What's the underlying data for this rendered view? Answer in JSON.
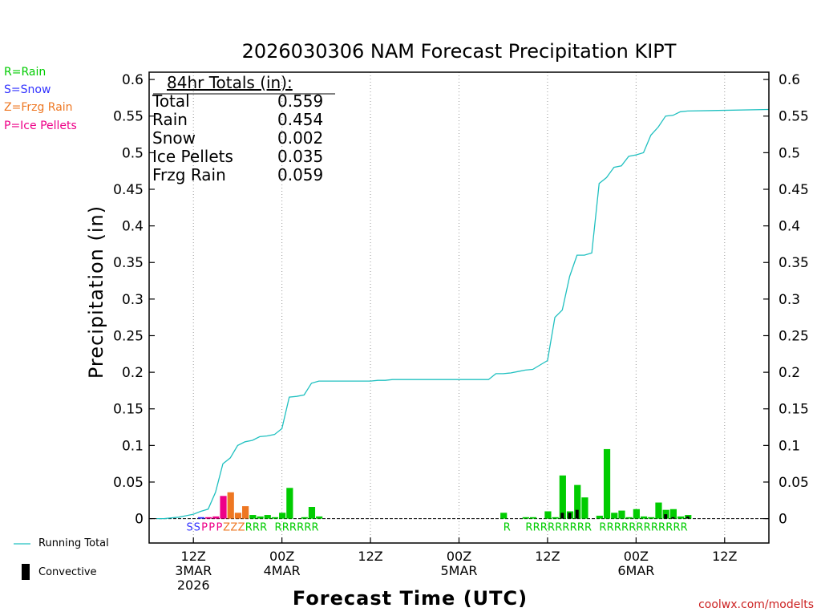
{
  "chart_data": {
    "type": "bar",
    "title": "2026030306 NAM Forecast Precipitation KIPT",
    "xlabel": "Forecast Time (UTC)",
    "ylabel": "Precipitation (in)",
    "ylim": [
      -0.0333,
      0.61
    ],
    "yticks": [
      0,
      0.05,
      0.1,
      0.15,
      0.2,
      0.25,
      0.3,
      0.35,
      0.4,
      0.45,
      0.5,
      0.55,
      0.6
    ],
    "ytick_labels": [
      "0",
      "0.05",
      "0.1",
      "0.15",
      "0.2",
      "0.25",
      "0.3",
      "0.35",
      "0.4",
      "0.45",
      "0.5",
      "0.55",
      "0.6"
    ],
    "xlim_hours": [
      0,
      84
    ],
    "xticks": [
      {
        "hour": 6,
        "lines": [
          "12Z",
          "3MAR",
          "2026"
        ]
      },
      {
        "hour": 18,
        "lines": [
          "00Z",
          "4MAR"
        ]
      },
      {
        "hour": 30,
        "lines": [
          "12Z"
        ]
      },
      {
        "hour": 42,
        "lines": [
          "00Z",
          "5MAR"
        ]
      },
      {
        "hour": 54,
        "lines": [
          "12Z"
        ]
      },
      {
        "hour": 66,
        "lines": [
          "00Z",
          "6MAR"
        ]
      },
      {
        "hour": 78,
        "lines": [
          "12Z"
        ]
      }
    ],
    "series": [
      {
        "name": "Running Total",
        "type": "line",
        "color": "#20c0c0",
        "x": [
          1,
          2,
          3,
          4,
          5,
          6,
          7,
          8,
          9,
          10,
          11,
          12,
          13,
          14,
          15,
          16,
          17,
          18,
          19,
          20,
          21,
          22,
          23,
          24,
          25,
          26,
          27,
          28,
          29,
          30,
          31,
          32,
          33,
          34,
          35,
          36,
          37,
          38,
          39,
          40,
          41,
          42,
          43,
          44,
          45,
          46,
          47,
          48,
          49,
          50,
          51,
          52,
          53,
          54,
          55,
          56,
          57,
          58,
          59,
          60,
          61,
          62,
          63,
          64,
          65,
          66,
          67,
          68,
          69,
          70,
          71,
          72,
          73,
          84
        ],
        "values": [
          0.0,
          0.0,
          0.001,
          0.002,
          0.004,
          0.006,
          0.01,
          0.013,
          0.036,
          0.075,
          0.083,
          0.1,
          0.105,
          0.107,
          0.112,
          0.113,
          0.115,
          0.123,
          0.166,
          0.167,
          0.169,
          0.185,
          0.188,
          0.188,
          0.188,
          0.188,
          0.188,
          0.188,
          0.188,
          0.188,
          0.189,
          0.189,
          0.19,
          0.19,
          0.19,
          0.19,
          0.19,
          0.19,
          0.19,
          0.19,
          0.19,
          0.19,
          0.19,
          0.19,
          0.19,
          0.19,
          0.198,
          0.198,
          0.199,
          0.201,
          0.203,
          0.204,
          0.21,
          0.216,
          0.275,
          0.285,
          0.331,
          0.36,
          0.36,
          0.363,
          0.458,
          0.466,
          0.48,
          0.482,
          0.495,
          0.497,
          0.5,
          0.524,
          0.535,
          0.55,
          0.551,
          0.556,
          0.557,
          0.559
        ]
      },
      {
        "name": "Hourly Precip",
        "type": "bar",
        "bars": [
          {
            "hour": 7,
            "value": 0.002,
            "ptype": "S"
          },
          {
            "hour": 8,
            "value": 0.002,
            "ptype": "P"
          },
          {
            "hour": 9,
            "value": 0.003,
            "ptype": "P"
          },
          {
            "hour": 10,
            "value": 0.031,
            "ptype": "P"
          },
          {
            "hour": 11,
            "value": 0.036,
            "ptype": "Z"
          },
          {
            "hour": 12,
            "value": 0.008,
            "ptype": "Z"
          },
          {
            "hour": 13,
            "value": 0.017,
            "ptype": "Z"
          },
          {
            "hour": 14,
            "value": 0.005,
            "ptype": "R"
          },
          {
            "hour": 15,
            "value": 0.003,
            "ptype": "R"
          },
          {
            "hour": 16,
            "value": 0.005,
            "ptype": "R"
          },
          {
            "hour": 17,
            "value": 0.002,
            "ptype": "R"
          },
          {
            "hour": 18,
            "value": 0.008,
            "ptype": "R"
          },
          {
            "hour": 19,
            "value": 0.042,
            "ptype": "R"
          },
          {
            "hour": 21,
            "value": 0.002,
            "ptype": "R"
          },
          {
            "hour": 22,
            "value": 0.016,
            "ptype": "R"
          },
          {
            "hour": 23,
            "value": 0.003,
            "ptype": "R"
          },
          {
            "hour": 48,
            "value": 0.008,
            "ptype": "R"
          },
          {
            "hour": 51,
            "value": 0.002,
            "ptype": "R"
          },
          {
            "hour": 52,
            "value": 0.002,
            "ptype": "R"
          },
          {
            "hour": 54,
            "value": 0.01,
            "ptype": "R"
          },
          {
            "hour": 55,
            "value": 0.002,
            "ptype": "R"
          },
          {
            "hour": 56,
            "value": 0.059,
            "ptype": "R",
            "convective": 0.008
          },
          {
            "hour": 57,
            "value": 0.01,
            "ptype": "R",
            "convective": 0.008
          },
          {
            "hour": 58,
            "value": 0.046,
            "ptype": "R",
            "convective": 0.012
          },
          {
            "hour": 59,
            "value": 0.029,
            "ptype": "R"
          },
          {
            "hour": 61,
            "value": 0.004,
            "ptype": "R"
          },
          {
            "hour": 62,
            "value": 0.095,
            "ptype": "R"
          },
          {
            "hour": 63,
            "value": 0.008,
            "ptype": "R"
          },
          {
            "hour": 64,
            "value": 0.011,
            "ptype": "R"
          },
          {
            "hour": 65,
            "value": 0.002,
            "ptype": "R"
          },
          {
            "hour": 66,
            "value": 0.013,
            "ptype": "R"
          },
          {
            "hour": 67,
            "value": 0.003,
            "ptype": "R"
          },
          {
            "hour": 68,
            "value": 0.002,
            "ptype": "R"
          },
          {
            "hour": 69,
            "value": 0.022,
            "ptype": "R"
          },
          {
            "hour": 70,
            "value": 0.012,
            "ptype": "R",
            "convective": 0.006
          },
          {
            "hour": 71,
            "value": 0.013,
            "ptype": "R",
            "convective": 0.002
          },
          {
            "hour": 72,
            "value": 0.003,
            "ptype": "R"
          },
          {
            "hour": 73,
            "value": 0.005,
            "ptype": "R",
            "convective": 0.003
          }
        ]
      }
    ],
    "type_strip": [
      {
        "hour": 5,
        "label": "S",
        "ptype": "S"
      },
      {
        "hour": 6,
        "label": "S",
        "ptype": "S"
      },
      {
        "hour": 7,
        "label": "P",
        "ptype": "P"
      },
      {
        "hour": 8,
        "label": "P",
        "ptype": "P"
      },
      {
        "hour": 9,
        "label": "P",
        "ptype": "P"
      },
      {
        "hour": 10,
        "label": "Z",
        "ptype": "Z"
      },
      {
        "hour": 11,
        "label": "Z",
        "ptype": "Z"
      },
      {
        "hour": 12,
        "label": "Z",
        "ptype": "Z"
      },
      {
        "hour": 13,
        "label": "R",
        "ptype": "R"
      },
      {
        "hour": 14,
        "label": "R",
        "ptype": "R"
      },
      {
        "hour": 15,
        "label": "R",
        "ptype": "R"
      },
      {
        "hour": 17,
        "label": "R",
        "ptype": "R"
      },
      {
        "hour": 18,
        "label": "R",
        "ptype": "R"
      },
      {
        "hour": 19,
        "label": "R",
        "ptype": "R"
      },
      {
        "hour": 20,
        "label": "R",
        "ptype": "R"
      },
      {
        "hour": 21,
        "label": "R",
        "ptype": "R"
      },
      {
        "hour": 22,
        "label": "R",
        "ptype": "R"
      },
      {
        "hour": 48,
        "label": "R",
        "ptype": "R"
      },
      {
        "hour": 51,
        "label": "R",
        "ptype": "R"
      },
      {
        "hour": 52,
        "label": "R",
        "ptype": "R"
      },
      {
        "hour": 53,
        "label": "R",
        "ptype": "R"
      },
      {
        "hour": 54,
        "label": "R",
        "ptype": "R"
      },
      {
        "hour": 55,
        "label": "R",
        "ptype": "R"
      },
      {
        "hour": 56,
        "label": "R",
        "ptype": "R"
      },
      {
        "hour": 57,
        "label": "R",
        "ptype": "R"
      },
      {
        "hour": 58,
        "label": "R",
        "ptype": "R"
      },
      {
        "hour": 59,
        "label": "R",
        "ptype": "R"
      },
      {
        "hour": 61,
        "label": "R",
        "ptype": "R"
      },
      {
        "hour": 62,
        "label": "R",
        "ptype": "R"
      },
      {
        "hour": 63,
        "label": "R",
        "ptype": "R"
      },
      {
        "hour": 64,
        "label": "R",
        "ptype": "R"
      },
      {
        "hour": 65,
        "label": "R",
        "ptype": "R"
      },
      {
        "hour": 66,
        "label": "R",
        "ptype": "R"
      },
      {
        "hour": 67,
        "label": "R",
        "ptype": "R"
      },
      {
        "hour": 68,
        "label": "R",
        "ptype": "R"
      },
      {
        "hour": 69,
        "label": "R",
        "ptype": "R"
      },
      {
        "hour": 70,
        "label": "R",
        "ptype": "R"
      },
      {
        "hour": 71,
        "label": "R",
        "ptype": "R"
      },
      {
        "hour": 72,
        "label": "R",
        "ptype": "R"
      }
    ],
    "type_colors": {
      "R": "#00cc00",
      "S": "#3333ff",
      "Z": "#ee7722",
      "P": "#ee0088"
    },
    "convective_color": "#000000"
  },
  "type_legend": [
    {
      "text": "R=Rain",
      "color": "#00cc00"
    },
    {
      "text": "S=Snow",
      "color": "#3333ff"
    },
    {
      "text": "Z=Frzg Rain",
      "color": "#ee7722"
    },
    {
      "text": "P=Ice Pellets",
      "color": "#ee0088"
    }
  ],
  "totals_box": {
    "header": "84hr Totals (in):",
    "rows": [
      {
        "label": "Total",
        "value": "0.559"
      },
      {
        "label": "Rain",
        "value": "0.454"
      },
      {
        "label": "Snow",
        "value": "0.002"
      },
      {
        "label": "Ice Pellets",
        "value": "0.035"
      },
      {
        "label": "Frzg Rain",
        "value": "0.059"
      }
    ]
  },
  "bottom_legend": {
    "running_total": "Running Total",
    "convective": "Convective"
  },
  "credit": "coolwx.com/modelts"
}
